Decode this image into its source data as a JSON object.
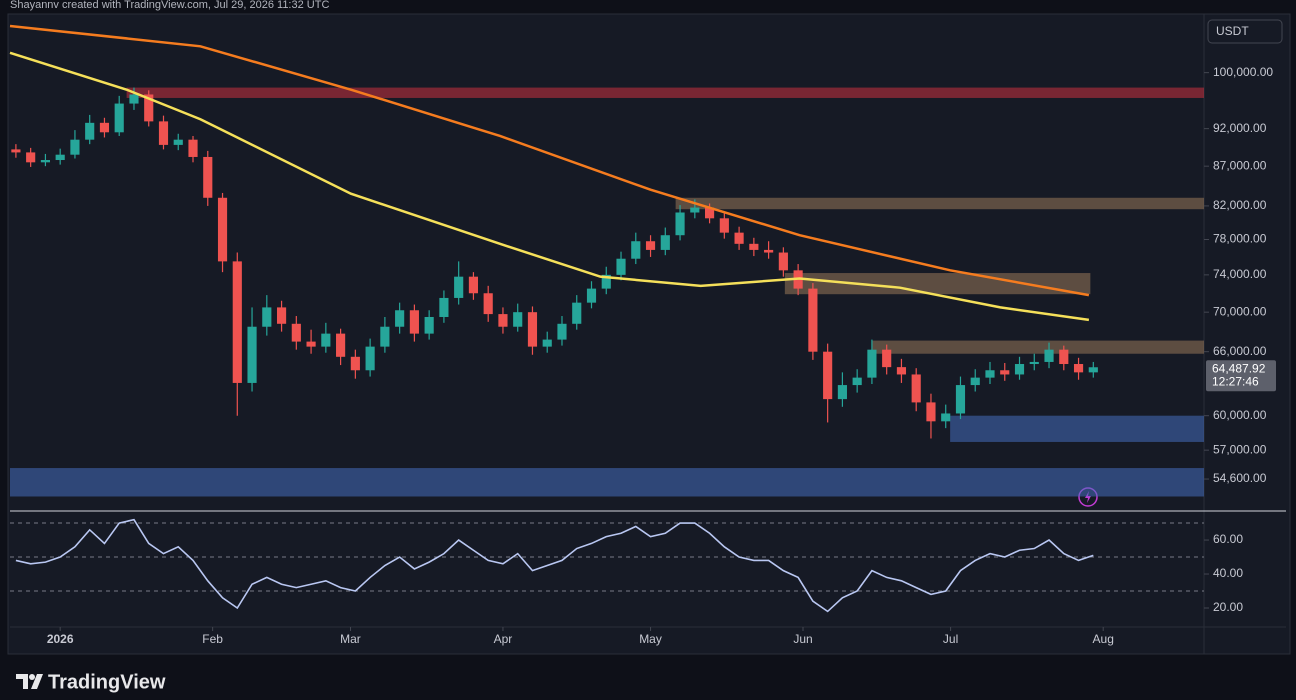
{
  "header": "Shayannv created with TradingView.com, Jul 29, 2026 11:32 UTC",
  "currency": "USDT",
  "brand": "TradingView",
  "chart_data": [
    {
      "type": "candlestick",
      "log_scale": true,
      "up_color": "#26a69a",
      "down_color": "#ef5350",
      "xlim": [
        -0.4,
        80.5
      ],
      "ylim": [
        52140,
        108800
      ],
      "yticks": [
        {
          "value": 54600,
          "label": "54,600.00"
        },
        {
          "value": 57000,
          "label": "57,000.00"
        },
        {
          "value": 60000,
          "label": "60,000.00"
        },
        {
          "value": 66000,
          "label": "66,000.00"
        },
        {
          "value": 70000,
          "label": "70,000.00"
        },
        {
          "value": 74000,
          "label": "74,000.00"
        },
        {
          "value": 78000,
          "label": "78,000.00"
        },
        {
          "value": 82000,
          "label": "82,000.00"
        },
        {
          "value": 87000,
          "label": "87,000.00"
        },
        {
          "value": 92000,
          "label": "92,000.00"
        },
        {
          "value": 100000,
          "label": "100,000.00"
        }
      ],
      "open": [
        89200,
        88800,
        87500,
        87800,
        88500,
        90500,
        92800,
        91500,
        95500,
        96800,
        93000,
        89800,
        90500,
        88200,
        83000,
        75500,
        63000,
        68500,
        70500,
        68800,
        67000,
        66500,
        67800,
        65500,
        64200,
        66500,
        68500,
        70200,
        67800,
        69500,
        71500,
        73800,
        72000,
        69800,
        68500,
        70000,
        66500,
        67200,
        68800,
        71000,
        72500,
        74000,
        75800,
        77800,
        76800,
        78500,
        81200,
        81800,
        80500,
        78800,
        77500,
        76800,
        76500,
        74500,
        72500,
        66000,
        61500,
        62800,
        63500,
        66200,
        64500,
        63800,
        61200,
        59500,
        60200,
        62800,
        63500,
        64200,
        63800,
        64800,
        65000,
        66200,
        64800,
        64000
      ],
      "high": [
        89900,
        89400,
        88600,
        89300,
        91800,
        93900,
        93500,
        96600,
        97800,
        97400,
        93800,
        91300,
        91000,
        89000,
        83600,
        76500,
        70500,
        71800,
        71200,
        69600,
        68200,
        68900,
        68300,
        66200,
        67300,
        69500,
        71000,
        70800,
        70200,
        72300,
        75500,
        74300,
        72800,
        70500,
        70900,
        70600,
        68000,
        69600,
        71800,
        73300,
        74900,
        76600,
        78800,
        78500,
        79400,
        82100,
        82800,
        82300,
        81100,
        79500,
        78200,
        77800,
        77100,
        75200,
        73100,
        66800,
        64000,
        64300,
        67200,
        66700,
        65300,
        64400,
        62000,
        61000,
        63600,
        64300,
        65000,
        64900,
        65500,
        65800,
        66900,
        66600,
        65400,
        65000
      ],
      "low": [
        88100,
        86900,
        87000,
        87200,
        88000,
        89900,
        90800,
        91000,
        94600,
        92300,
        89200,
        89100,
        87500,
        82000,
        74300,
        60000,
        62200,
        67600,
        68000,
        66200,
        65800,
        65900,
        64700,
        63400,
        63600,
        65900,
        67800,
        67000,
        67200,
        68900,
        70800,
        71300,
        69000,
        67800,
        68000,
        65700,
        65900,
        66600,
        68200,
        70400,
        71900,
        73400,
        75200,
        76000,
        76200,
        77900,
        80500,
        79900,
        78100,
        76800,
        76100,
        75800,
        73800,
        71800,
        65200,
        59400,
        60800,
        62100,
        62900,
        63800,
        63000,
        60400,
        58000,
        58900,
        59700,
        62200,
        62900,
        63200,
        63300,
        64200,
        64400,
        64200,
        63300,
        63500
      ],
      "close": [
        88800,
        87500,
        87800,
        88500,
        90500,
        92800,
        91500,
        95500,
        96800,
        93000,
        89800,
        90500,
        88200,
        83000,
        75500,
        63000,
        68500,
        70500,
        68800,
        67000,
        66500,
        67800,
        65500,
        64200,
        66500,
        68500,
        70200,
        67800,
        69500,
        71500,
        73800,
        72000,
        69800,
        68500,
        70000,
        66500,
        67200,
        68800,
        71000,
        72500,
        74000,
        75800,
        77800,
        76800,
        78500,
        81200,
        81800,
        80500,
        78800,
        77500,
        76800,
        76500,
        74500,
        72500,
        66000,
        61500,
        62800,
        63500,
        66200,
        64500,
        63800,
        61200,
        59500,
        60200,
        62800,
        63500,
        64200,
        63800,
        64800,
        65000,
        66200,
        64800,
        64000,
        64487.92
      ],
      "lines": [
        {
          "color": "#f57c1f",
          "x": [
            -0.4,
            12.5,
            22.7,
            32.8,
            43,
            53.1,
            63.3,
            72.7
          ],
          "values": [
            107200,
            104000,
            97500,
            91000,
            84000,
            78500,
            74500,
            71800
          ]
        },
        {
          "color": "#f5e05a",
          "x": [
            -0.4,
            7.5,
            12.5,
            22.7,
            32.8,
            39.6,
            46.4,
            53.1,
            59.9,
            66.7,
            72.7
          ],
          "values": [
            103000,
            97500,
            93300,
            83500,
            77500,
            73800,
            72800,
            73600,
            72600,
            70500,
            69200
          ]
        }
      ],
      "zones": [
        {
          "from": 96300,
          "to": 97800,
          "start": 7.5,
          "end": 80.5,
          "color": "rgba(242,54,69,0.45)"
        },
        {
          "from": 81600,
          "to": 83000,
          "start": 44.7,
          "end": 80.5,
          "color": "rgba(180,140,100,0.45)"
        },
        {
          "from": 71900,
          "to": 74200,
          "start": 52.1,
          "end": 72.8,
          "color": "rgba(180,140,100,0.45)"
        },
        {
          "from": 65800,
          "to": 67100,
          "start": 58,
          "end": 80.5,
          "color": "rgba(180,140,100,0.45)"
        },
        {
          "from": 57700,
          "to": 60000,
          "start": 63.3,
          "end": 80.5,
          "color": "rgba(70,110,190,0.55)"
        },
        {
          "from": 53200,
          "to": 55500,
          "start": -0.4,
          "end": 80.5,
          "color": "rgba(70,110,190,0.55)"
        }
      ],
      "last_price": {
        "value": 64487.92,
        "label": "64,487.92"
      },
      "countdown": "12:27:46"
    },
    {
      "type": "line",
      "color": "#b9c7f2",
      "xlim": [
        -0.4,
        80.5
      ],
      "ylim": [
        10,
        76.5
      ],
      "yticks": [
        {
          "value": 20,
          "label": "20.00"
        },
        {
          "value": 40,
          "label": "40.00"
        },
        {
          "value": 60,
          "label": "60.00"
        }
      ],
      "levels": [
        70,
        50,
        30
      ],
      "xticks": [
        {
          "value": 3,
          "label": "2026"
        },
        {
          "value": 13.33,
          "label": "Feb"
        },
        {
          "value": 22.67,
          "label": "Mar"
        },
        {
          "value": 33,
          "label": "Apr"
        },
        {
          "value": 43,
          "label": "May"
        },
        {
          "value": 53.33,
          "label": "Jun"
        },
        {
          "value": 63.33,
          "label": "Jul"
        },
        {
          "value": 73.67,
          "label": "Aug"
        }
      ],
      "values": [
        48,
        46,
        47,
        50,
        56,
        66,
        58,
        70,
        72,
        58,
        52,
        56,
        48,
        36,
        26,
        20,
        34,
        38,
        34,
        32,
        34,
        36,
        32,
        30,
        38,
        45,
        50,
        43,
        47,
        52,
        60,
        54,
        48,
        46,
        52,
        42,
        45,
        48,
        55,
        58,
        62,
        64,
        68,
        62,
        64,
        70,
        70,
        64,
        56,
        50,
        48,
        48,
        42,
        38,
        24,
        18,
        26,
        30,
        42,
        38,
        36,
        32,
        28,
        30,
        42,
        48,
        52,
        50,
        54,
        55,
        60,
        52,
        48,
        51
      ]
    }
  ]
}
